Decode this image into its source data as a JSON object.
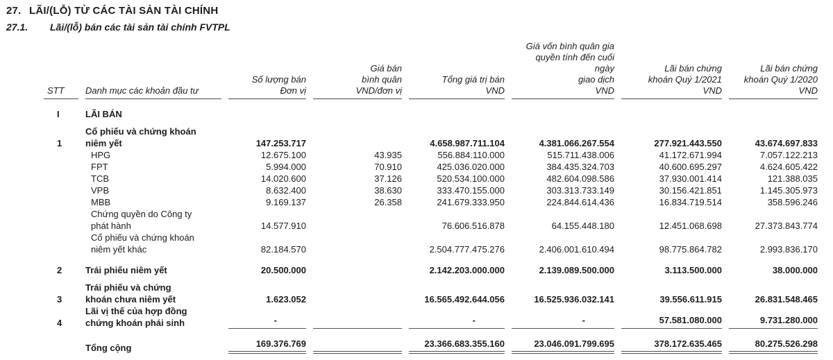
{
  "document": {
    "section_number": "27.",
    "section_title": "LÃI/(LỖ) TỪ CÁC TÀI SẢN TÀI CHÍNH",
    "subsection_number": "27.1.",
    "subsection_title": "Lãi/(lỗ) bán các tài sản tài chính FVTPL"
  },
  "table": {
    "columns": [
      {
        "key": "stt",
        "label": "STT",
        "align": "left"
      },
      {
        "key": "category",
        "label": "Danh mục các khoản đầu tư",
        "align": "left"
      },
      {
        "key": "quantity",
        "label": "Số lượng bán\nĐơn vị",
        "align": "right"
      },
      {
        "key": "avg_price",
        "label": "Giá bán\nbình quân\nVND/đơn vị",
        "align": "right"
      },
      {
        "key": "total_value",
        "label": "Tổng giá trị bán\nVND",
        "align": "right"
      },
      {
        "key": "avg_cost",
        "label": "Giá vốn bình quân gia\nquyền tính đến cuối\nngày\ngiao dịch\nVND",
        "align": "right"
      },
      {
        "key": "profit_q1_2021",
        "label": "Lãi bán chứng\nkhoán Quý 1/2021\nVND",
        "align": "right"
      },
      {
        "key": "profit_q1_2020",
        "label": "Lãi bán chứng\nkhoán Quý 1/2020\nVND",
        "align": "right"
      }
    ],
    "rows": [
      {
        "stt": "I",
        "label": "LÃI BÁN",
        "bold": true,
        "spacing": "lg",
        "cells": [
          "",
          "",
          "",
          "",
          "",
          ""
        ]
      },
      {
        "stt": "1",
        "label": "Cổ phiếu và chứng khoán\nniêm yết",
        "bold": true,
        "spacing": "sm",
        "cells": [
          "147.253.717",
          "",
          "4.658.987.711.104",
          "4.381.066.267.554",
          "277.921.443.550",
          "43.674.697.833"
        ]
      },
      {
        "stt": "",
        "label": "HPG",
        "indent": true,
        "cells": [
          "12.675.100",
          "43.935",
          "556.884.110.000",
          "515.711.438.006",
          "41.172.671.994",
          "7.057.122.213"
        ]
      },
      {
        "stt": "",
        "label": "FPT",
        "indent": true,
        "cells": [
          "5.994.000",
          "70.910",
          "425.036.020.000",
          "384.435.324.703",
          "40.600.695.297",
          "4.624.605.422"
        ]
      },
      {
        "stt": "",
        "label": "TCB",
        "indent": true,
        "cells": [
          "14.020.600",
          "37.126",
          "520.534.100.000",
          "482.604.098.586",
          "37.930.001.414",
          "121.388.035"
        ]
      },
      {
        "stt": "",
        "label": "VPB",
        "indent": true,
        "cells": [
          "8.632.400",
          "38.630",
          "333.470.155.000",
          "303.313.733.149",
          "30.156.421.851",
          "1.145.305.973"
        ]
      },
      {
        "stt": "",
        "label": "MBB",
        "indent": true,
        "cells": [
          "9.169.137",
          "26.358",
          "241.679.333.950",
          "224.844.614.436",
          "16.834.719.514",
          "358.596.246"
        ]
      },
      {
        "stt": "",
        "label": "Chứng quyền do Công ty\nphát hành",
        "indent": true,
        "cells": [
          "14.577.910",
          "",
          "76.606.516.878",
          "64.155.448.180",
          "12.451.068.698",
          "27.373.843.774"
        ]
      },
      {
        "stt": "",
        "label": "Cổ phiếu và chứng khoán\nniêm yết khác",
        "indent": true,
        "cells": [
          "82.184.570",
          "",
          "2.504.777.475.276",
          "2.406.001.610.494",
          "98.775.864.782",
          "2.993.836.170"
        ]
      },
      {
        "stt": "2",
        "label": "Trái phiếu niêm yết",
        "bold": true,
        "spacing": "lg",
        "cells": [
          "20.500.000",
          "",
          "2.142.203.000.000",
          "2.139.089.500.000",
          "3.113.500.000",
          "38.000.000"
        ]
      },
      {
        "stt": "3",
        "label": "Trái phiếu và chứng\nkhoán chưa niêm yết",
        "bold": true,
        "spacing": "sm",
        "cells": [
          "1.623.052",
          "",
          "16.565.492.644.056",
          "16.525.936.032.141",
          "39.556.611.915",
          "26.831.548.465"
        ]
      },
      {
        "stt": "4",
        "label": "Lãi vị thế của hợp đồng\nchứng khoán phái sinh",
        "bold": true,
        "rule_below": true,
        "cells": [
          "-",
          "",
          "-",
          "-",
          "57.581.080.000",
          "9.731.280.000"
        ]
      },
      {
        "stt": "",
        "label": "Tổng cộng",
        "bold": true,
        "total": true,
        "spacing": "lg",
        "cells": [
          "169.376.769",
          "",
          "23.366.683.355.160",
          "23.046.091.799.695",
          "378.172.635.465",
          "80.275.526.298"
        ]
      }
    ]
  }
}
